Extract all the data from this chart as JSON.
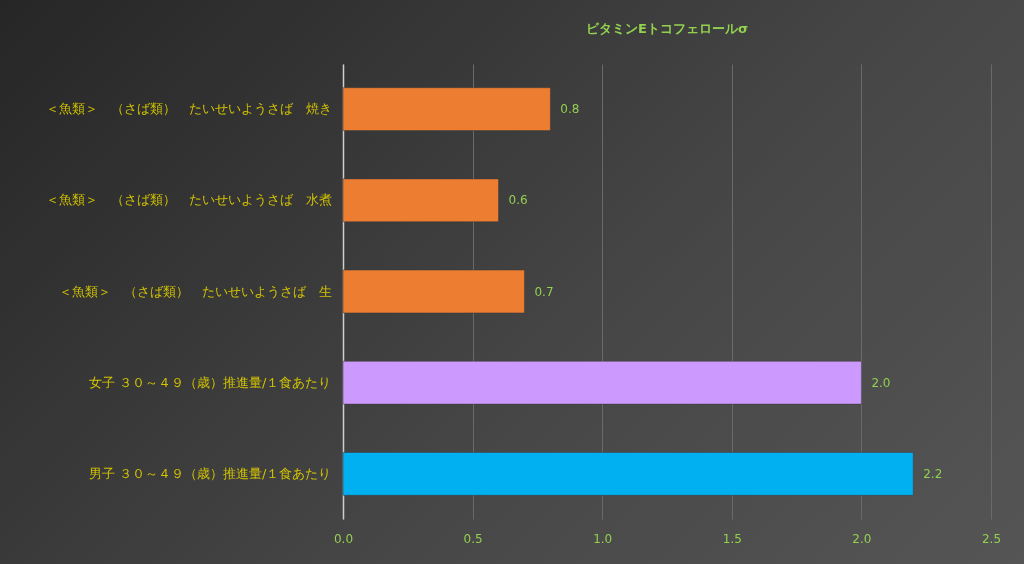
{
  "chart_data": {
    "type": "bar",
    "orientation": "horizontal",
    "title": "ビタミンEトコフェロールσ",
    "categories": [
      "＜魚類＞　（さば類）　たいせいようさば　焼き",
      "＜魚類＞　（さば類）　たいせいようさば　水煮",
      "＜魚類＞　（さば類）　たいせいようさば　生",
      "女子 ３０～４９（歳）推進量/１食あたり",
      "男子 ３０～４９（歳）推進量/１食あたり"
    ],
    "values": [
      0.8,
      0.6,
      0.7,
      2.0,
      2.2
    ],
    "colors": [
      "#ed7d31",
      "#ed7d31",
      "#ed7d31",
      "#cc99ff",
      "#00b0f0"
    ],
    "xlim": [
      0,
      2.5
    ],
    "xticks": [
      {
        "value": 0,
        "label": "0.0"
      },
      {
        "value": 0.5,
        "label": "0.5"
      },
      {
        "value": 1,
        "label": "1.0"
      },
      {
        "value": 1.5,
        "label": "1.5"
      },
      {
        "value": 2,
        "label": "2.0"
      },
      {
        "value": 2.5,
        "label": "2.5"
      }
    ],
    "value_labels": [
      "0.8",
      "0.6",
      "0.7",
      "2.0",
      "2.2"
    ],
    "grid": "x"
  }
}
